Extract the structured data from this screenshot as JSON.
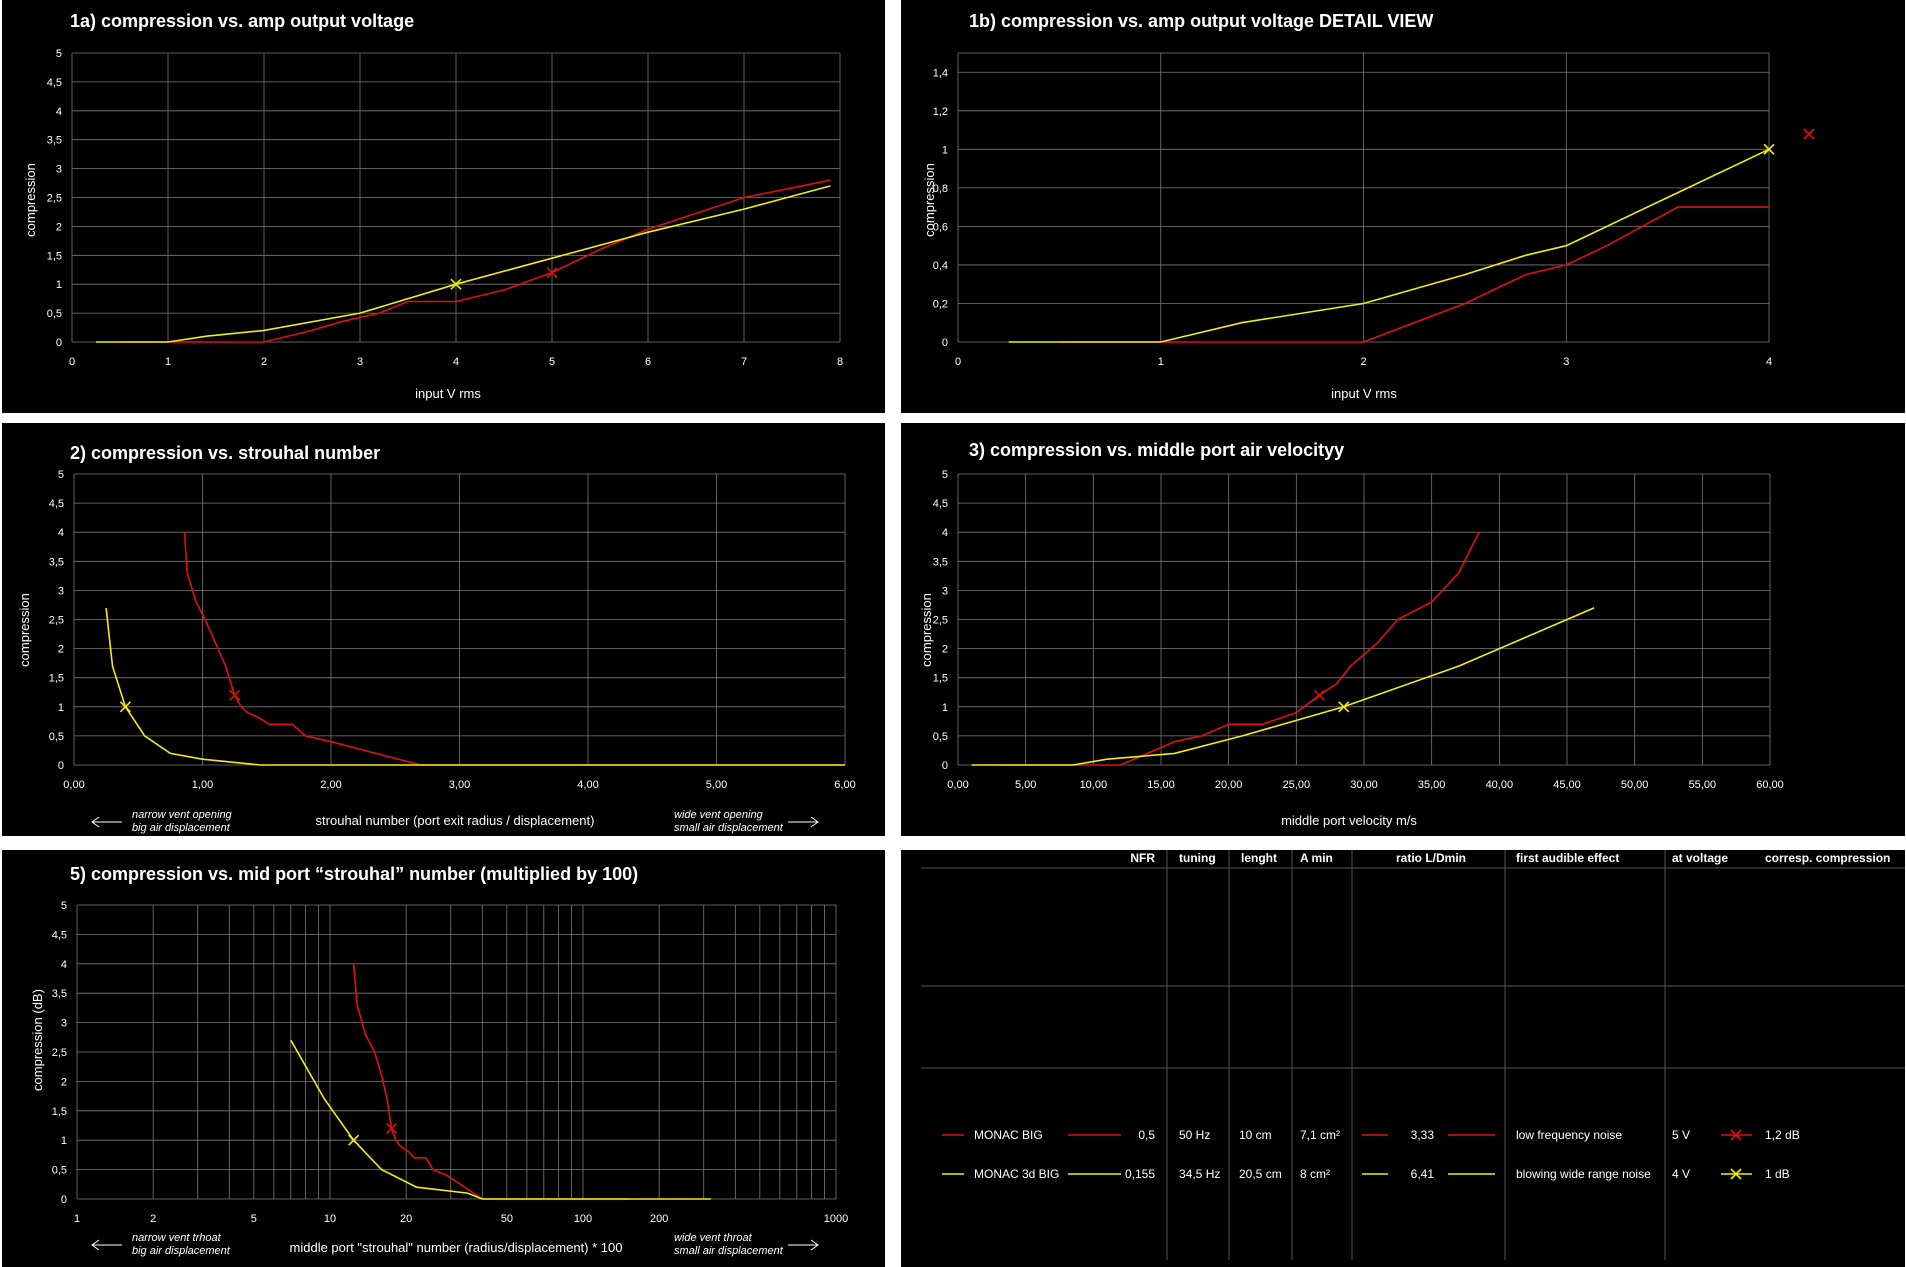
{
  "colors": {
    "series_a": "#e01010",
    "series_b": "#f2ee10",
    "grid": "#7a7a7a",
    "background": "#000000",
    "text": "#ffffff"
  },
  "chart_data": [
    {
      "id": "1a",
      "type": "line",
      "title": "1a) compression vs. amp output voltage",
      "xlabel": "input V rms",
      "ylabel": "compression",
      "xlim": [
        0,
        8
      ],
      "ylim": [
        0,
        5
      ],
      "grid": true,
      "x_ticks": [
        "0",
        "1",
        "2",
        "3",
        "4",
        "5",
        "6",
        "7",
        "8"
      ],
      "y_ticks": [
        "0",
        "0,5",
        "1",
        "1,5",
        "2",
        "2,5",
        "3",
        "3,5",
        "4",
        "4,5",
        "5"
      ],
      "series": [
        {
          "color": "red",
          "points": [
            [
              0.5,
              0
            ],
            [
              1,
              0
            ],
            [
              2,
              0
            ],
            [
              2.5,
              0.2
            ],
            [
              2.8,
              0.35
            ],
            [
              3.2,
              0.5
            ],
            [
              3.5,
              0.7
            ],
            [
              4,
              0.7
            ],
            [
              4.5,
              0.9
            ],
            [
              5,
              1.2
            ],
            [
              5.5,
              1.6
            ],
            [
              6,
              1.95
            ],
            [
              7,
              2.5
            ],
            [
              7.9,
              2.8
            ]
          ],
          "marker": [
            5,
            1.2
          ]
        },
        {
          "color": "yellow",
          "points": [
            [
              0.25,
              0
            ],
            [
              0.5,
              0
            ],
            [
              1,
              0
            ],
            [
              1.4,
              0.1
            ],
            [
              2,
              0.2
            ],
            [
              3,
              0.5
            ],
            [
              4,
              1
            ],
            [
              5,
              1.45
            ],
            [
              6,
              1.9
            ],
            [
              7,
              2.3
            ],
            [
              7.9,
              2.7
            ]
          ],
          "marker": [
            4,
            1
          ]
        }
      ]
    },
    {
      "id": "1b",
      "type": "line",
      "title": "1b) compression vs. amp output voltage DETAIL VIEW",
      "xlabel": "input V rms",
      "ylabel": "compression",
      "xlim": [
        0,
        4
      ],
      "ylim": [
        0,
        1.5
      ],
      "grid": true,
      "x_ticks": [
        "0",
        "1",
        "2",
        "3",
        "4"
      ],
      "y_ticks": [
        "0",
        "0,2",
        "0,4",
        "0,6",
        "0,8",
        "1",
        "1,2",
        "1,4"
      ],
      "series": [
        {
          "color": "red",
          "points": [
            [
              0.5,
              0
            ],
            [
              1,
              0
            ],
            [
              2,
              0
            ],
            [
              2.5,
              0.2
            ],
            [
              2.8,
              0.35
            ],
            [
              3,
              0.4
            ],
            [
              3.2,
              0.5
            ],
            [
              3.55,
              0.7
            ],
            [
              4,
              0.7
            ]
          ],
          "marker": null
        },
        {
          "color": "yellow",
          "points": [
            [
              0.25,
              0
            ],
            [
              0.5,
              0
            ],
            [
              1,
              0
            ],
            [
              1.4,
              0.1
            ],
            [
              2,
              0.2
            ],
            [
              2.5,
              0.35
            ],
            [
              2.8,
              0.45
            ],
            [
              3,
              0.5
            ],
            [
              3.5,
              0.75
            ],
            [
              4,
              1
            ]
          ],
          "marker": [
            4,
            1
          ]
        }
      ],
      "extra_marker": {
        "color": "red"
      }
    },
    {
      "id": "2",
      "type": "line",
      "title": "2) compression vs. strouhal number",
      "xlabel": "strouhal number (port exit radius / displacement)",
      "ylabel": "compression",
      "xlim": [
        0,
        6
      ],
      "ylim": [
        0,
        5
      ],
      "grid": true,
      "x_ticks": [
        "0,00",
        "1,00",
        "2,00",
        "3,00",
        "4,00",
        "5,00",
        "6,00"
      ],
      "y_ticks": [
        "0",
        "0,5",
        "1",
        "1,5",
        "2",
        "2,5",
        "3",
        "3,5",
        "4",
        "4,5",
        "5"
      ],
      "note_left": [
        "narrow vent opening",
        "big air displacement"
      ],
      "note_right": [
        "wide vent opening",
        "small air displacement"
      ],
      "series": [
        {
          "color": "red",
          "points": [
            [
              0.86,
              4
            ],
            [
              0.88,
              3.3
            ],
            [
              0.95,
              2.8
            ],
            [
              1.02,
              2.5
            ],
            [
              1.1,
              2.1
            ],
            [
              1.18,
              1.7
            ],
            [
              1.25,
              1.2
            ],
            [
              1.3,
              1
            ],
            [
              1.35,
              0.9
            ],
            [
              1.45,
              0.8
            ],
            [
              1.52,
              0.7
            ],
            [
              1.7,
              0.7
            ],
            [
              1.8,
              0.5
            ],
            [
              2,
              0.4
            ],
            [
              2.7,
              0
            ],
            [
              3,
              0
            ],
            [
              6,
              0
            ]
          ],
          "marker": [
            1.25,
            1.2
          ]
        },
        {
          "color": "yellow",
          "points": [
            [
              0.25,
              2.7
            ],
            [
              0.3,
              1.7
            ],
            [
              0.4,
              1
            ],
            [
              0.55,
              0.5
            ],
            [
              0.75,
              0.2
            ],
            [
              1,
              0.1
            ],
            [
              1.45,
              0
            ],
            [
              3,
              0
            ],
            [
              6,
              0
            ]
          ],
          "marker": [
            0.4,
            1
          ]
        }
      ]
    },
    {
      "id": "3",
      "type": "line",
      "title": "3) compression vs. middle port air velocityy",
      "xlabel": "middle port velocity m/s",
      "ylabel": "compression",
      "xlim": [
        0,
        60
      ],
      "ylim": [
        0,
        5
      ],
      "grid": true,
      "x_ticks": [
        "0,00",
        "5,00",
        "10,00",
        "15,00",
        "20,00",
        "25,00",
        "30,00",
        "35,00",
        "40,00",
        "45,00",
        "50,00",
        "55,00",
        "60,00"
      ],
      "y_ticks": [
        "0",
        "0,5",
        "1",
        "1,5",
        "2",
        "2,5",
        "3",
        "3,5",
        "4",
        "4,5",
        "5"
      ],
      "series": [
        {
          "color": "red",
          "points": [
            [
              3,
              0
            ],
            [
              8,
              0
            ],
            [
              12,
              0
            ],
            [
              14,
              0.2
            ],
            [
              16,
              0.4
            ],
            [
              18,
              0.5
            ],
            [
              20,
              0.7
            ],
            [
              22.5,
              0.7
            ],
            [
              25,
              0.9
            ],
            [
              26.7,
              1.2
            ],
            [
              28,
              1.4
            ],
            [
              29,
              1.7
            ],
            [
              31,
              2.1
            ],
            [
              32.5,
              2.5
            ],
            [
              35,
              2.8
            ],
            [
              37,
              3.3
            ],
            [
              38.5,
              4
            ]
          ],
          "marker": [
            26.7,
            1.2
          ]
        },
        {
          "color": "yellow",
          "points": [
            [
              1,
              0
            ],
            [
              3,
              0
            ],
            [
              8.5,
              0
            ],
            [
              11,
              0.1
            ],
            [
              16,
              0.2
            ],
            [
              21,
              0.5
            ],
            [
              28.5,
              1
            ],
            [
              37,
              1.7
            ],
            [
              47,
              2.7
            ]
          ],
          "marker": [
            28.5,
            1
          ]
        }
      ]
    },
    {
      "id": "5",
      "type": "line",
      "title": "5) compression vs. mid port “strouhal” number (multiplied by 100)",
      "xlabel": "middle port \"strouhal\" number (radius/displacement) * 100",
      "ylabel": "compression (dB)",
      "xscale": "log",
      "xlim": [
        1,
        1000
      ],
      "ylim": [
        0,
        5
      ],
      "grid": true,
      "x_ticks": [
        {
          "v": 1,
          "t": "1"
        },
        {
          "v": 2,
          "t": "2"
        },
        {
          "v": 5,
          "t": "5"
        },
        {
          "v": 10,
          "t": "10"
        },
        {
          "v": 20,
          "t": "20"
        },
        {
          "v": 50,
          "t": "50"
        },
        {
          "v": 100,
          "t": "100"
        },
        {
          "v": 200,
          "t": "200"
        },
        {
          "v": 1000,
          "t": "1000"
        }
      ],
      "y_ticks": [
        "0",
        "0,5",
        "1",
        "1,5",
        "2",
        "2,5",
        "3",
        "3,5",
        "4",
        "4,5",
        "5"
      ],
      "note_left": [
        "narrow vent trhoat",
        "big air displacement"
      ],
      "note_right": [
        "wide vent throat",
        "small air displacement"
      ],
      "series": [
        {
          "color": "red",
          "points": [
            [
              12.4,
              4
            ],
            [
              12.8,
              3.3
            ],
            [
              13.8,
              2.8
            ],
            [
              15,
              2.5
            ],
            [
              16,
              2.1
            ],
            [
              16.8,
              1.7
            ],
            [
              17.5,
              1.2
            ],
            [
              18.2,
              1
            ],
            [
              19,
              0.9
            ],
            [
              20.5,
              0.8
            ],
            [
              21.5,
              0.7
            ],
            [
              24,
              0.7
            ],
            [
              25.5,
              0.5
            ],
            [
              29,
              0.4
            ],
            [
              40,
              0
            ],
            [
              60,
              0
            ],
            [
              150,
              0
            ]
          ],
          "marker": [
            17.5,
            1.2
          ]
        },
        {
          "color": "yellow",
          "points": [
            [
              7,
              2.7
            ],
            [
              9.5,
              1.7
            ],
            [
              12.4,
              1
            ],
            [
              16,
              0.5
            ],
            [
              22,
              0.2
            ],
            [
              35,
              0.1
            ],
            [
              40,
              0
            ],
            [
              100,
              0
            ],
            [
              320,
              0
            ]
          ],
          "marker": [
            12.4,
            1
          ]
        }
      ]
    }
  ],
  "table": {
    "headers": [
      "NFR",
      "tuning",
      "lenght",
      "A min",
      "ratio L/Dmin",
      "first audible effect",
      "at voltage",
      "corresp. compression"
    ],
    "rows": [
      {
        "color": "red",
        "name": "MONAC BIG",
        "nfr": "0,5",
        "tuning": "50 Hz",
        "lenght": "10 cm",
        "amin": "7,1 cm²",
        "ratio": "3,33",
        "effect": "low frequency noise",
        "voltage": "5 V",
        "compression": "1,2 dB"
      },
      {
        "color": "yellow",
        "name": "MONAC 3d BIG",
        "nfr": "0,155",
        "tuning": "34,5 Hz",
        "lenght": "20,5 cm",
        "amin": "8 cm²",
        "ratio": "6,41",
        "effect": "blowing wide range noise",
        "voltage": "4 V",
        "compression": "1 dB"
      }
    ]
  }
}
